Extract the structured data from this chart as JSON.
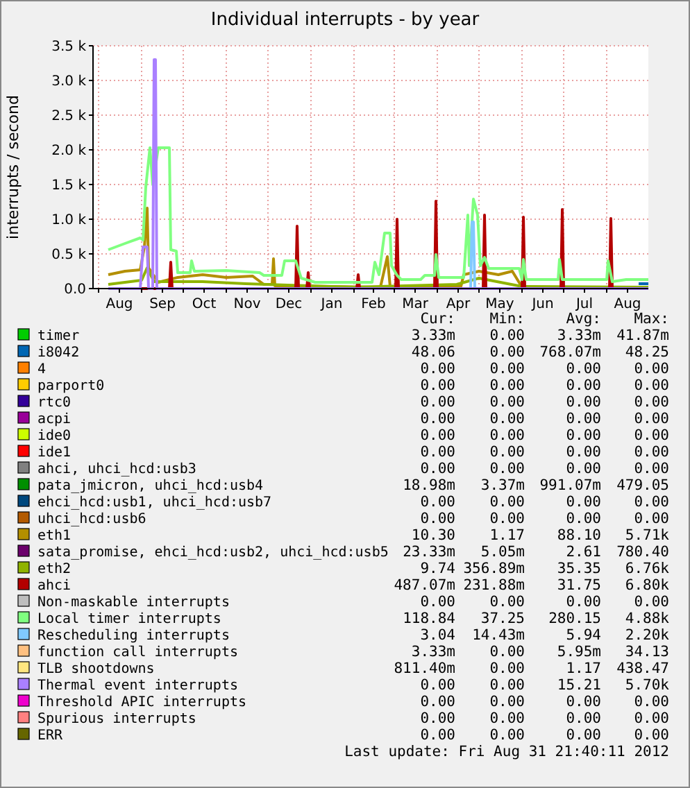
{
  "chart_data": {
    "type": "line",
    "title": "Individual interrupts - by year",
    "ylabel": "interrupts / second",
    "xlim": [
      "2011-07-28",
      "2012-08-31"
    ],
    "ylim": [
      0,
      3500
    ],
    "xticks": [
      {
        "value": "2011-08-01",
        "label": null
      },
      {
        "value": "2011-08-16",
        "label": "Aug"
      },
      {
        "value": "2011-09-01",
        "label": null
      },
      {
        "value": "2011-09-16",
        "label": "Sep"
      },
      {
        "value": "2011-10-01",
        "label": null
      },
      {
        "value": "2011-10-16",
        "label": "Oct"
      },
      {
        "value": "2011-11-01",
        "label": null
      },
      {
        "value": "2011-11-16",
        "label": "Nov"
      },
      {
        "value": "2011-12-01",
        "label": null
      },
      {
        "value": "2011-12-16",
        "label": "Dec"
      },
      {
        "value": "2012-01-01",
        "label": null
      },
      {
        "value": "2012-01-16",
        "label": "Jan"
      },
      {
        "value": "2012-02-01",
        "label": null
      },
      {
        "value": "2012-02-15",
        "label": "Feb"
      },
      {
        "value": "2012-03-01",
        "label": null
      },
      {
        "value": "2012-03-16",
        "label": "Mar"
      },
      {
        "value": "2012-04-01",
        "label": null
      },
      {
        "value": "2012-04-16",
        "label": "Apr"
      },
      {
        "value": "2012-05-01",
        "label": null
      },
      {
        "value": "2012-05-16",
        "label": "May"
      },
      {
        "value": "2012-06-01",
        "label": null
      },
      {
        "value": "2012-06-16",
        "label": "Jun"
      },
      {
        "value": "2012-07-01",
        "label": null
      },
      {
        "value": "2012-07-16",
        "label": "Jul"
      },
      {
        "value": "2012-08-01",
        "label": null
      },
      {
        "value": "2012-08-16",
        "label": "Aug"
      }
    ],
    "yticks": [
      {
        "value": 0,
        "label": "0.0"
      },
      {
        "value": 500,
        "label": "0.5 k"
      },
      {
        "value": 1000,
        "label": "1.0 k"
      },
      {
        "value": 1500,
        "label": "1.5 k"
      },
      {
        "value": 2000,
        "label": "2.0 k"
      },
      {
        "value": 2500,
        "label": "2.5 k"
      },
      {
        "value": 3000,
        "label": "3.0 k"
      },
      {
        "value": 3500,
        "label": "3.5 k"
      }
    ],
    "grid": true,
    "legend": "bottom",
    "line_style": "solid",
    "marker": "none",
    "series": [
      {
        "name": "timer",
        "color": "#00cc00"
      },
      {
        "name": "i8042",
        "color": "#0066b3",
        "x": [
          "2012-08-24",
          "2012-08-31"
        ],
        "values": [
          70,
          70
        ]
      },
      {
        "name": "4",
        "color": "#ff8000"
      },
      {
        "name": "parport0",
        "color": "#ffcc00"
      },
      {
        "name": "rtc0",
        "color": "#330099"
      },
      {
        "name": "acpi",
        "color": "#990099"
      },
      {
        "name": "ide0",
        "color": "#ccff00"
      },
      {
        "name": "ide1",
        "color": "#ff0000"
      },
      {
        "name": "ahci, uhci_hcd:usb3",
        "color": "#808080"
      },
      {
        "name": "pata_jmicron, uhci_hcd:usb4",
        "color": "#008f00"
      },
      {
        "name": "ehci_hcd:usb1, uhci_hcd:usb7",
        "color": "#00487d"
      },
      {
        "name": "uhci_hcd:usb6",
        "color": "#b35a00"
      },
      {
        "name": "eth1",
        "color": "#b38f00",
        "x": [
          "2011-08-08",
          "2011-08-20",
          "2011-08-31",
          "2011-09-03",
          "2011-09-05",
          "2011-09-06",
          "2011-09-13",
          "2011-09-27",
          "2011-10-15",
          "2011-11-01",
          "2011-11-20",
          "2011-11-28",
          "2011-12-04",
          "2011-12-05",
          "2011-12-06",
          "2012-02-20",
          "2012-02-25",
          "2012-02-27",
          "2012-04-18",
          "2012-04-20",
          "2012-05-01",
          "2012-05-15",
          "2012-05-25",
          "2012-06-01",
          "2012-08-31"
        ],
        "values": [
          200,
          250,
          270,
          600,
          1160,
          300,
          90,
          160,
          200,
          160,
          180,
          60,
          60,
          430,
          40,
          20,
          460,
          30,
          30,
          200,
          250,
          200,
          250,
          20,
          20
        ]
      },
      {
        "name": "sata_promise, ehci_hcd:usb2, uhci_hcd:usb5",
        "color": "#6b006b"
      },
      {
        "name": "eth2",
        "color": "#8fb300",
        "x": [
          "2011-08-08",
          "2011-09-01",
          "2011-09-05",
          "2011-09-10",
          "2011-10-15",
          "2011-11-15",
          "2011-12-15",
          "2012-02-01",
          "2012-04-15",
          "2012-05-01",
          "2012-06-01",
          "2012-08-31"
        ],
        "values": [
          60,
          120,
          300,
          100,
          100,
          70,
          50,
          20,
          60,
          150,
          30,
          20
        ]
      },
      {
        "name": "ahci",
        "color": "#b30000",
        "x": [
          "2011-08-08",
          "2011-09-21",
          "2011-09-22",
          "2011-09-23",
          "2011-12-21",
          "2011-12-22",
          "2011-12-23",
          "2011-12-29",
          "2011-12-30",
          "2011-12-31",
          "2012-02-03",
          "2012-02-04",
          "2012-02-05",
          "2012-03-02",
          "2012-03-03",
          "2012-03-04",
          "2012-03-30",
          "2012-03-31",
          "2012-04-01",
          "2012-05-04",
          "2012-05-05",
          "2012-05-06",
          "2012-06-01",
          "2012-06-02",
          "2012-06-03",
          "2012-06-29",
          "2012-06-30",
          "2012-07-01",
          "2012-08-03",
          "2012-08-04",
          "2012-08-05",
          "2012-08-31"
        ],
        "values": [
          0,
          0,
          380,
          0,
          0,
          900,
          0,
          0,
          230,
          0,
          0,
          200,
          0,
          0,
          1000,
          0,
          0,
          1260,
          0,
          0,
          1060,
          0,
          0,
          1030,
          0,
          0,
          1140,
          0,
          0,
          1010,
          0,
          0
        ]
      },
      {
        "name": "Non-maskable interrupts",
        "color": "#bebebe"
      },
      {
        "name": "Local timer interrupts",
        "color": "#80ff80",
        "x": [
          "2011-08-08",
          "2011-08-20",
          "2011-08-31",
          "2011-09-02",
          "2011-09-04",
          "2011-09-07",
          "2011-09-09",
          "2011-09-13",
          "2011-09-21",
          "2011-09-22",
          "2011-09-26",
          "2011-09-27",
          "2011-10-06",
          "2011-10-07",
          "2011-10-09",
          "2011-11-01",
          "2011-11-25",
          "2011-11-28",
          "2011-12-11",
          "2011-12-13",
          "2011-12-21",
          "2011-12-25",
          "2012-01-04",
          "2012-02-14",
          "2012-02-16",
          "2012-02-19",
          "2012-02-23",
          "2012-02-27",
          "2012-02-28",
          "2012-03-03",
          "2012-03-06",
          "2012-03-20",
          "2012-03-23",
          "2012-03-30",
          "2012-03-31",
          "2012-04-02",
          "2012-04-20",
          "2012-04-23",
          "2012-04-24",
          "2012-04-27",
          "2012-04-30",
          "2012-05-02",
          "2012-05-05",
          "2012-05-08",
          "2012-05-30",
          "2012-06-01",
          "2012-06-02",
          "2012-06-04",
          "2012-06-27",
          "2012-06-28",
          "2012-06-30",
          "2012-08-01",
          "2012-08-02",
          "2012-08-05",
          "2012-08-15",
          "2012-08-31"
        ],
        "values": [
          560,
          650,
          730,
          700,
          1460,
          2030,
          1500,
          2030,
          2030,
          560,
          540,
          230,
          230,
          400,
          250,
          260,
          230,
          190,
          190,
          400,
          400,
          150,
          90,
          90,
          380,
          200,
          800,
          800,
          330,
          190,
          130,
          130,
          190,
          190,
          490,
          160,
          160,
          1060,
          330,
          1290,
          1060,
          330,
          450,
          290,
          290,
          130,
          420,
          130,
          130,
          420,
          130,
          130,
          400,
          100,
          130,
          130
        ]
      },
      {
        "name": "Rescheduling interrupts",
        "color": "#80c9ff",
        "x": [
          "2012-04-25",
          "2012-04-26",
          "2012-04-27",
          "2012-04-28"
        ],
        "values": [
          0,
          960,
          960,
          0
        ]
      },
      {
        "name": "function call interrupts",
        "color": "#ffc080"
      },
      {
        "name": "TLB shootdowns",
        "color": "#ffe680"
      },
      {
        "name": "Thermal event interrupts",
        "color": "#aa80ff",
        "x": [
          "2011-08-08",
          "2011-08-31",
          "2011-09-02",
          "2011-09-05",
          "2011-09-06",
          "2011-09-09",
          "2011-09-10",
          "2011-09-11",
          "2011-09-12",
          "2012-08-31"
        ],
        "values": [
          0,
          0,
          600,
          600,
          0,
          0,
          3300,
          3300,
          0,
          0
        ]
      },
      {
        "name": "Threshold APIC interrupts",
        "color": "#ee00cc"
      },
      {
        "name": "Spurious interrupts",
        "color": "#ff8080"
      },
      {
        "name": "ERR",
        "color": "#666600"
      }
    ],
    "annotations": [
      "Cur:",
      "Min:",
      "Avg:",
      "Max:",
      "3.33m",
      "0.00",
      "3.33m",
      "41.87m",
      "48.06",
      "0.00",
      "768.07m",
      "48.25",
      "0.00",
      "0.00",
      "0.00",
      "0.00",
      "0.00",
      "0.00",
      "0.00",
      "0.00",
      "0.00",
      "0.00",
      "0.00",
      "0.00",
      "0.00",
      "0.00",
      "0.00",
      "0.00",
      "0.00",
      "0.00",
      "0.00",
      "0.00",
      "0.00",
      "0.00",
      "0.00",
      "0.00",
      "0.00",
      "0.00",
      "0.00",
      "0.00",
      "18.98m",
      "3.37m",
      "991.07m",
      "479.05",
      "0.00",
      "0.00",
      "0.00",
      "0.00",
      "0.00",
      "0.00",
      "0.00",
      "0.00",
      "10.30",
      "1.17",
      "88.10",
      "5.71k",
      "23.33m",
      "5.05m",
      "2.61",
      "780.40",
      "9.74",
      "356.89m",
      "35.35",
      "6.76k",
      "487.07m",
      "231.88m",
      "31.75",
      "6.80k",
      "0.00",
      "0.00",
      "0.00",
      "0.00",
      "118.84",
      "37.25",
      "280.15",
      "4.88k",
      "3.04",
      "14.43m",
      "5.94",
      "2.20k",
      "3.33m",
      "0.00",
      "5.95m",
      "34.13",
      "811.40m",
      "0.00",
      "1.17",
      "438.47",
      "0.00",
      "0.00",
      "15.21",
      "5.70k",
      "0.00",
      "0.00",
      "0.00",
      "0.00",
      "0.00",
      "0.00",
      "0.00",
      "0.00",
      "0.00",
      "0.00",
      "0.00",
      "0.00",
      "Last update:  Fri Aug 31 21:40:11 2012"
    ]
  }
}
